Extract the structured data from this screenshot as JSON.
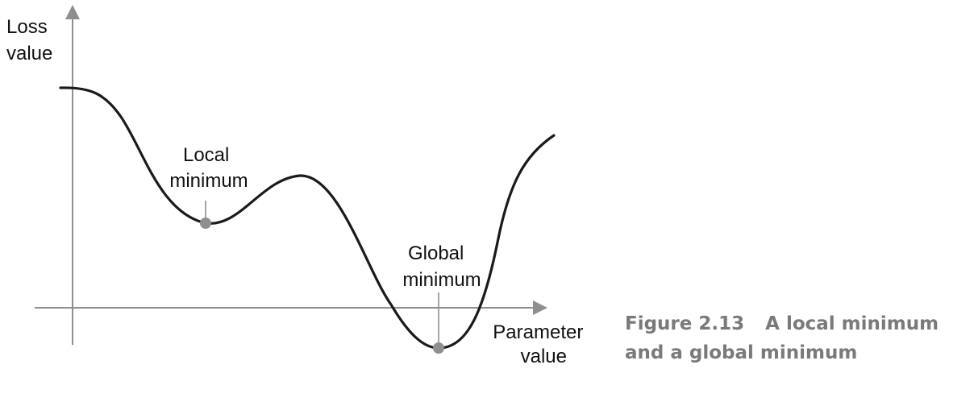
{
  "axes": {
    "y_label_lines": [
      "Loss",
      "value"
    ],
    "x_label_lines": [
      "Parameter",
      "value"
    ]
  },
  "annotations": {
    "local_minimum_lines": [
      "Local",
      "minimum"
    ],
    "global_minimum_lines": [
      "Global",
      "minimum"
    ]
  },
  "caption": {
    "figure_number": "Figure 2.13",
    "text": "A local minimum and a global minimum"
  },
  "colors": {
    "axis": "#8f8f8f",
    "curve": "#1a1a1a",
    "marker": "#8f8f8f",
    "caption": "#7a7a7a"
  }
}
